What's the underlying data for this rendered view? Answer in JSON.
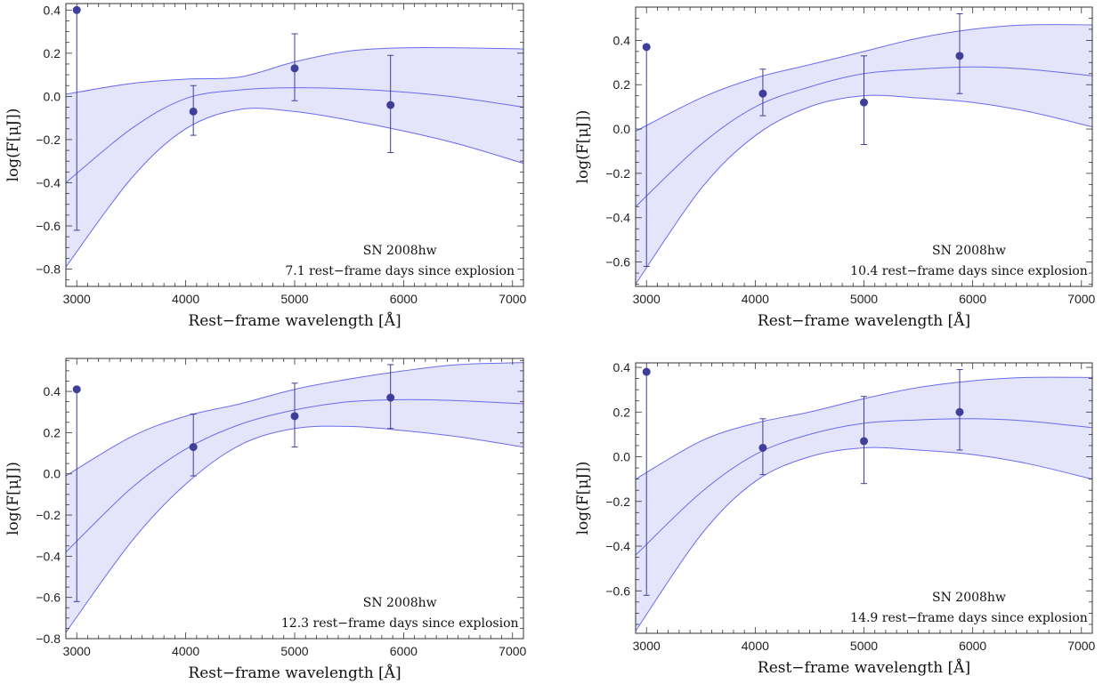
{
  "chart_data": [
    {
      "type": "scatter",
      "title": "",
      "xlabel": "Rest−frame  wavelength  [Å]",
      "ylabel": "log(F[μJ])",
      "xlim": [
        2900,
        7100
      ],
      "ylim": [
        -0.88,
        0.43
      ],
      "xticks": [
        3000,
        4000,
        5000,
        6000,
        7000
      ],
      "yticks": [
        -0.8,
        -0.6,
        -0.4,
        -0.2,
        0.0,
        0.2,
        0.4
      ],
      "ytick_labels": [
        "−0.8",
        "−0.6",
        "−0.4",
        "−0.2",
        "0.0",
        "0.2",
        "0.4"
      ],
      "annotations": [
        "SN  2008hw",
        "7.1  rest−frame  days  since  explosion"
      ],
      "grid": false,
      "points": [
        {
          "x": 3000,
          "y": 0.4,
          "err_low": -0.62,
          "err_high": 0.4
        },
        {
          "x": 4070,
          "y": -0.07,
          "err_low": -0.18,
          "err_high": 0.05
        },
        {
          "x": 5000,
          "y": 0.13,
          "err_low": -0.02,
          "err_high": 0.29
        },
        {
          "x": 5880,
          "y": -0.04,
          "err_low": -0.26,
          "err_high": 0.19
        }
      ],
      "model": {
        "x": [
          2900,
          3500,
          4000,
          4500,
          5000,
          5500,
          6000,
          6500,
          7100
        ],
        "mid": [
          -0.4,
          -0.15,
          -0.01,
          0.03,
          0.04,
          0.035,
          0.02,
          -0.005,
          -0.05
        ],
        "upper": [
          0.01,
          0.06,
          0.08,
          0.09,
          0.16,
          0.21,
          0.225,
          0.225,
          0.22
        ],
        "lower": [
          -0.79,
          -0.38,
          -0.15,
          -0.06,
          -0.07,
          -0.11,
          -0.16,
          -0.22,
          -0.31
        ]
      }
    },
    {
      "type": "scatter",
      "title": "",
      "xlabel": "Rest−frame  wavelength  [Å]",
      "ylabel": "log(F[μJ])",
      "xlim": [
        2900,
        7100
      ],
      "ylim": [
        -0.71,
        0.55
      ],
      "xticks": [
        3000,
        4000,
        5000,
        6000,
        7000
      ],
      "yticks": [
        -0.6,
        -0.4,
        -0.2,
        0.0,
        0.2,
        0.4
      ],
      "ytick_labels": [
        "−0.6",
        "−0.4",
        "−0.2",
        "0.0",
        "0.2",
        "0.4"
      ],
      "annotations": [
        "SN  2008hw",
        "10.4  rest−frame  days  since  explosion"
      ],
      "grid": false,
      "points": [
        {
          "x": 3000,
          "y": 0.37,
          "err_low": -0.62,
          "err_high": 0.37
        },
        {
          "x": 4070,
          "y": 0.16,
          "err_low": 0.06,
          "err_high": 0.27
        },
        {
          "x": 5000,
          "y": 0.12,
          "err_low": -0.07,
          "err_high": 0.33
        },
        {
          "x": 5880,
          "y": 0.33,
          "err_low": 0.16,
          "err_high": 0.52
        }
      ],
      "model": {
        "x": [
          2900,
          3500,
          4000,
          4500,
          5000,
          5500,
          6000,
          6500,
          7100
        ],
        "mid": [
          -0.35,
          -0.07,
          0.1,
          0.19,
          0.25,
          0.27,
          0.28,
          0.27,
          0.24
        ],
        "upper": [
          -0.01,
          0.14,
          0.23,
          0.29,
          0.35,
          0.41,
          0.45,
          0.47,
          0.47
        ],
        "lower": [
          -0.7,
          -0.27,
          -0.03,
          0.1,
          0.15,
          0.14,
          0.12,
          0.08,
          0.01
        ]
      }
    },
    {
      "type": "scatter",
      "title": "",
      "xlabel": "Rest−frame  wavelength  [Å]",
      "ylabel": "log(F[μJ])",
      "xlim": [
        2900,
        7100
      ],
      "ylim": [
        -0.8,
        0.56
      ],
      "xticks": [
        3000,
        4000,
        5000,
        6000,
        7000
      ],
      "yticks": [
        -0.8,
        -0.6,
        -0.4,
        -0.2,
        0.0,
        0.2,
        0.4
      ],
      "ytick_labels": [
        "−0.8",
        "−0.6",
        "−0.4",
        "−0.2",
        "0.0",
        "0.2",
        "0.4"
      ],
      "annotations": [
        "SN  2008hw",
        "12.3  rest−frame  days  since  explosion"
      ],
      "grid": false,
      "points": [
        {
          "x": 3000,
          "y": 0.41,
          "err_low": -0.62,
          "err_high": 0.41
        },
        {
          "x": 4070,
          "y": 0.13,
          "err_low": -0.01,
          "err_high": 0.29
        },
        {
          "x": 5000,
          "y": 0.28,
          "err_low": 0.13,
          "err_high": 0.44
        },
        {
          "x": 5880,
          "y": 0.37,
          "err_low": 0.22,
          "err_high": 0.53
        }
      ],
      "model": {
        "x": [
          2900,
          3500,
          4000,
          4500,
          5000,
          5500,
          6000,
          6500,
          7100
        ],
        "mid": [
          -0.38,
          -0.07,
          0.12,
          0.24,
          0.31,
          0.35,
          0.36,
          0.355,
          0.34
        ],
        "upper": [
          -0.01,
          0.18,
          0.28,
          0.34,
          0.41,
          0.46,
          0.5,
          0.53,
          0.54
        ],
        "lower": [
          -0.77,
          -0.33,
          -0.05,
          0.14,
          0.22,
          0.23,
          0.21,
          0.18,
          0.13
        ]
      }
    },
    {
      "type": "scatter",
      "title": "",
      "xlabel": "Rest−frame  wavelength  [Å]",
      "ylabel": "log(F[μJ])",
      "xlim": [
        2900,
        7100
      ],
      "ylim": [
        -0.79,
        0.42
      ],
      "xticks": [
        3000,
        4000,
        5000,
        6000,
        7000
      ],
      "yticks": [
        -0.6,
        -0.4,
        -0.2,
        0.0,
        0.2,
        0.4
      ],
      "ytick_labels": [
        "−0.6",
        "−0.4",
        "−0.2",
        "0.0",
        "0.2",
        "0.4"
      ],
      "annotations": [
        "SN  2008hw",
        "14.9  rest−frame  days  since  explosion"
      ],
      "grid": false,
      "points": [
        {
          "x": 3000,
          "y": 0.38,
          "err_low": -0.62,
          "err_high": 0.38
        },
        {
          "x": 4070,
          "y": 0.04,
          "err_low": -0.08,
          "err_high": 0.17
        },
        {
          "x": 5000,
          "y": 0.07,
          "err_low": -0.12,
          "err_high": 0.27
        },
        {
          "x": 5880,
          "y": 0.2,
          "err_low": 0.03,
          "err_high": 0.39
        }
      ],
      "model": {
        "x": [
          2900,
          3500,
          4000,
          4500,
          5000,
          5500,
          6000,
          6500,
          7100
        ],
        "mid": [
          -0.44,
          -0.16,
          0.01,
          0.1,
          0.15,
          0.165,
          0.17,
          0.16,
          0.13
        ],
        "upper": [
          -0.1,
          0.07,
          0.15,
          0.2,
          0.26,
          0.31,
          0.34,
          0.355,
          0.355
        ],
        "lower": [
          -0.78,
          -0.35,
          -0.11,
          0.0,
          0.04,
          0.03,
          0.01,
          -0.03,
          -0.1
        ]
      }
    }
  ],
  "colors": {
    "marker": "#3f3f9a",
    "band_fill": "#e4e4fb",
    "model_line": "#6b6bf0",
    "axis": "#333333"
  }
}
